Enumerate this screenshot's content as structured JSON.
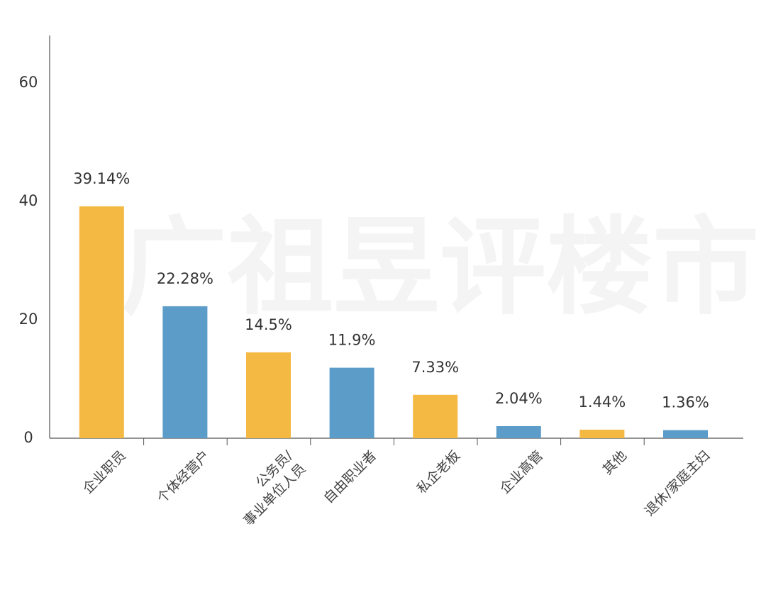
{
  "chart_data": {
    "type": "bar",
    "categories": [
      "企业职员",
      "个体经营户",
      "公务员/\n事业单位人员",
      "自由职业者",
      "私企老板",
      "企业高管",
      "其他",
      "退休/家庭主妇"
    ],
    "values": [
      39.14,
      22.28,
      14.5,
      11.9,
      7.33,
      2.04,
      1.44,
      1.36
    ],
    "value_labels": [
      "39.14%",
      "22.28%",
      "14.5%",
      "11.9%",
      "7.33%",
      "2.04%",
      "1.44%",
      "1.36%"
    ],
    "colors": [
      "#f4b942",
      "#5b9cc9",
      "#f4b942",
      "#5b9cc9",
      "#f4b942",
      "#5b9cc9",
      "#f4b942",
      "#5b9cc9"
    ],
    "ylim": [
      0,
      68
    ],
    "yticks": [
      0,
      20,
      40,
      60
    ],
    "grid": false,
    "watermark": "广祖昱评楼市"
  }
}
